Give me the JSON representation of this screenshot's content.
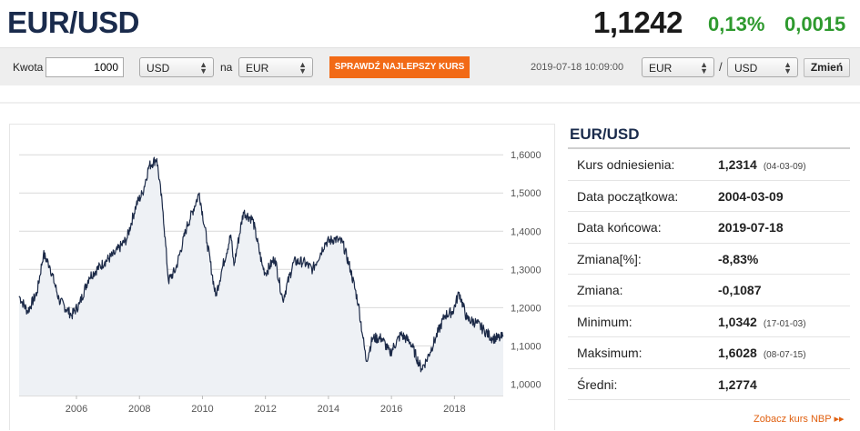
{
  "header": {
    "pair": "EUR/USD",
    "rate": "1,1242",
    "change_pct": "0,13%",
    "change_abs": "0,0015"
  },
  "toolbar": {
    "amount_label": "Kwota",
    "amount_value": "1000",
    "from_currency": "USD",
    "to_label": "na",
    "to_currency": "EUR",
    "best_rate_button": "SPRAWDŹ NAJLEPSZY KURS",
    "timestamp": "2019-07-18 10:09:00",
    "pair_base": "EUR",
    "pair_quote": "USD",
    "swap_button": "Zmień"
  },
  "colors": {
    "accent_orange": "#f26a16",
    "positive_green": "#2e9a2e",
    "title_navy": "#1a2b4c",
    "line_navy": "#1c2a48"
  },
  "chart_data": {
    "type": "area",
    "x_ticks": [
      "2006",
      "2008",
      "2010",
      "2012",
      "2014",
      "2016",
      "2018"
    ],
    "y_ticks": [
      "1,6000",
      "1,5000",
      "1,4000",
      "1,3000",
      "1,2000",
      "1,1000",
      "1,0000"
    ],
    "ylim": [
      0.97,
      1.66
    ],
    "xlim": [
      2004.18,
      2019.55
    ],
    "grid": true,
    "series": [
      {
        "values": [
          [
            2004.18,
            1.23
          ],
          [
            2004.45,
            1.19
          ],
          [
            2004.75,
            1.24
          ],
          [
            2004.95,
            1.34
          ],
          [
            2005.15,
            1.31
          ],
          [
            2005.45,
            1.22
          ],
          [
            2005.85,
            1.18
          ],
          [
            2006.1,
            1.21
          ],
          [
            2006.4,
            1.28
          ],
          [
            2006.9,
            1.32
          ],
          [
            2007.2,
            1.34
          ],
          [
            2007.6,
            1.38
          ],
          [
            2007.9,
            1.47
          ],
          [
            2008.1,
            1.5
          ],
          [
            2008.3,
            1.57
          ],
          [
            2008.55,
            1.59
          ],
          [
            2008.75,
            1.45
          ],
          [
            2008.92,
            1.27
          ],
          [
            2009.15,
            1.3
          ],
          [
            2009.5,
            1.41
          ],
          [
            2009.9,
            1.5
          ],
          [
            2010.15,
            1.37
          ],
          [
            2010.42,
            1.23
          ],
          [
            2010.65,
            1.31
          ],
          [
            2010.9,
            1.39
          ],
          [
            2011.0,
            1.31
          ],
          [
            2011.3,
            1.45
          ],
          [
            2011.6,
            1.43
          ],
          [
            2011.9,
            1.31
          ],
          [
            2012.0,
            1.29
          ],
          [
            2012.3,
            1.33
          ],
          [
            2012.55,
            1.22
          ],
          [
            2012.9,
            1.32
          ],
          [
            2013.2,
            1.32
          ],
          [
            2013.5,
            1.3
          ],
          [
            2013.9,
            1.37
          ],
          [
            2014.2,
            1.38
          ],
          [
            2014.45,
            1.37
          ],
          [
            2014.7,
            1.3
          ],
          [
            2014.95,
            1.21
          ],
          [
            2015.1,
            1.12
          ],
          [
            2015.2,
            1.06
          ],
          [
            2015.4,
            1.12
          ],
          [
            2015.7,
            1.12
          ],
          [
            2015.95,
            1.08
          ],
          [
            2016.3,
            1.13
          ],
          [
            2016.6,
            1.11
          ],
          [
            2016.95,
            1.04
          ],
          [
            2017.1,
            1.06
          ],
          [
            2017.4,
            1.12
          ],
          [
            2017.7,
            1.18
          ],
          [
            2017.95,
            1.19
          ],
          [
            2018.15,
            1.24
          ],
          [
            2018.4,
            1.17
          ],
          [
            2018.7,
            1.16
          ],
          [
            2018.95,
            1.14
          ],
          [
            2019.2,
            1.12
          ],
          [
            2019.45,
            1.12
          ],
          [
            2019.55,
            1.1242
          ]
        ]
      }
    ]
  },
  "stats_panel": {
    "title": "EUR/USD",
    "rows": [
      {
        "label": "Kurs odniesienia:",
        "value": "1,2314",
        "date": "(04-03-09)"
      },
      {
        "label": "Data początkowa:",
        "value": "2004-03-09",
        "date": ""
      },
      {
        "label": "Data końcowa:",
        "value": "2019-07-18",
        "date": ""
      },
      {
        "label": "Zmiana[%]:",
        "value": "-8,83%",
        "date": ""
      },
      {
        "label": "Zmiana:",
        "value": "-0,1087",
        "date": ""
      },
      {
        "label": "Minimum:",
        "value": "1,0342",
        "date": "(17-01-03)"
      },
      {
        "label": "Maksimum:",
        "value": "1,6028",
        "date": "(08-07-15)"
      },
      {
        "label": "Średni:",
        "value": "1,2774",
        "date": ""
      }
    ],
    "nbp_link": "Zobacz kurs NBP ▸▸"
  }
}
